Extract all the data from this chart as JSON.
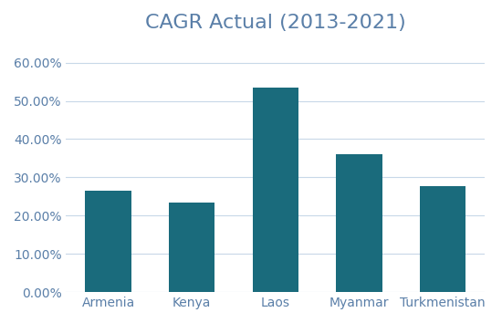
{
  "title": "CAGR Actual (2013-2021)",
  "categories": [
    "Armenia",
    "Kenya",
    "Laos",
    "Myanmar",
    "Turkmenistan"
  ],
  "values": [
    0.266,
    0.234,
    0.534,
    0.36,
    0.277
  ],
  "bar_color": "#1a6b7c",
  "ylim": [
    0,
    0.65
  ],
  "yticks": [
    0.0,
    0.1,
    0.2,
    0.3,
    0.4,
    0.5,
    0.6
  ],
  "ytick_labels": [
    "0.00%",
    "10.00%",
    "20.00%",
    "30.00%",
    "40.00%",
    "50.00%",
    "60.00%"
  ],
  "background_color": "#ffffff",
  "title_color": "#5a7fa8",
  "tick_color": "#5a7fa8",
  "grid_color": "#c8d8e8",
  "title_fontsize": 16,
  "tick_fontsize": 10,
  "bar_width": 0.55
}
